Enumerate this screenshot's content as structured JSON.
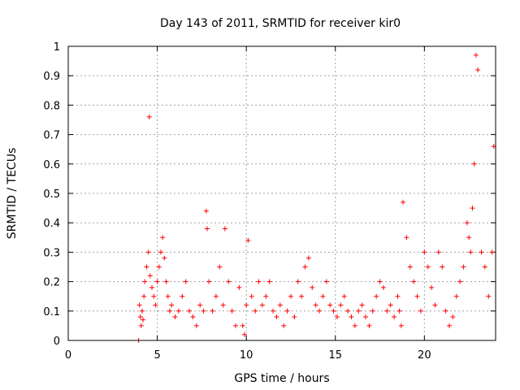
{
  "chart_data": {
    "type": "scatter",
    "title": "Day 143 of 2011, SRMTID for receiver kir0",
    "xlabel": "GPS time / hours",
    "ylabel": "SRMTID / TECUs",
    "xlim": [
      0,
      24
    ],
    "ylim": [
      0,
      1
    ],
    "xticks": [
      0,
      5,
      10,
      15,
      20
    ],
    "yticks": [
      0,
      0.1,
      0.2,
      0.3,
      0.4,
      0.5,
      0.6,
      0.7,
      0.8,
      0.9,
      1
    ],
    "grid": true,
    "marker": "+",
    "color": "#ff0000",
    "series": [
      {
        "name": "SRMTID",
        "x": [
          3.95,
          4.0,
          4.05,
          4.1,
          4.15,
          4.2,
          4.25,
          4.3,
          4.4,
          4.5,
          4.55,
          4.6,
          4.7,
          4.8,
          4.9,
          5.0,
          5.1,
          5.2,
          5.3,
          5.4,
          5.5,
          5.6,
          5.7,
          5.8,
          6.0,
          6.2,
          6.4,
          6.6,
          6.8,
          7.0,
          7.2,
          7.4,
          7.6,
          7.75,
          7.8,
          7.9,
          8.1,
          8.3,
          8.5,
          8.7,
          8.8,
          9.0,
          9.2,
          9.4,
          9.6,
          9.8,
          9.9,
          10.0,
          10.1,
          10.3,
          10.5,
          10.7,
          10.9,
          11.1,
          11.3,
          11.5,
          11.7,
          11.9,
          12.1,
          12.3,
          12.5,
          12.7,
          12.9,
          13.1,
          13.3,
          13.5,
          13.7,
          13.9,
          14.1,
          14.3,
          14.5,
          14.7,
          14.9,
          15.1,
          15.3,
          15.5,
          15.7,
          15.9,
          16.1,
          16.3,
          16.5,
          16.7,
          16.9,
          17.1,
          17.3,
          17.5,
          17.7,
          17.9,
          18.1,
          18.3,
          18.5,
          18.6,
          18.7,
          18.8,
          19.0,
          19.2,
          19.4,
          19.6,
          19.8,
          20.0,
          20.2,
          20.4,
          20.6,
          20.8,
          21.0,
          21.2,
          21.4,
          21.6,
          21.8,
          22.0,
          22.2,
          22.4,
          22.5,
          22.6,
          22.7,
          22.8,
          22.9,
          23.0,
          23.2,
          23.4,
          23.6,
          23.8,
          23.9
        ],
        "y": [
          0.0,
          0.12,
          0.08,
          0.05,
          0.1,
          0.07,
          0.15,
          0.2,
          0.25,
          0.3,
          0.76,
          0.22,
          0.18,
          0.15,
          0.12,
          0.2,
          0.25,
          0.3,
          0.35,
          0.28,
          0.2,
          0.15,
          0.1,
          0.12,
          0.08,
          0.1,
          0.15,
          0.2,
          0.1,
          0.08,
          0.05,
          0.12,
          0.1,
          0.44,
          0.38,
          0.2,
          0.1,
          0.15,
          0.25,
          0.12,
          0.38,
          0.2,
          0.1,
          0.05,
          0.18,
          0.05,
          0.02,
          0.12,
          0.34,
          0.15,
          0.1,
          0.2,
          0.12,
          0.15,
          0.2,
          0.1,
          0.08,
          0.12,
          0.05,
          0.1,
          0.15,
          0.08,
          0.2,
          0.15,
          0.25,
          0.28,
          0.18,
          0.12,
          0.1,
          0.15,
          0.2,
          0.12,
          0.1,
          0.08,
          0.12,
          0.15,
          0.1,
          0.08,
          0.05,
          0.1,
          0.12,
          0.08,
          0.05,
          0.1,
          0.15,
          0.2,
          0.18,
          0.1,
          0.12,
          0.08,
          0.15,
          0.1,
          0.05,
          0.47,
          0.35,
          0.25,
          0.2,
          0.15,
          0.1,
          0.3,
          0.25,
          0.18,
          0.12,
          0.3,
          0.25,
          0.1,
          0.05,
          0.08,
          0.15,
          0.2,
          0.25,
          0.4,
          0.35,
          0.3,
          0.45,
          0.6,
          0.97,
          0.92,
          0.3,
          0.25,
          0.15,
          0.3,
          0.66
        ]
      }
    ]
  }
}
